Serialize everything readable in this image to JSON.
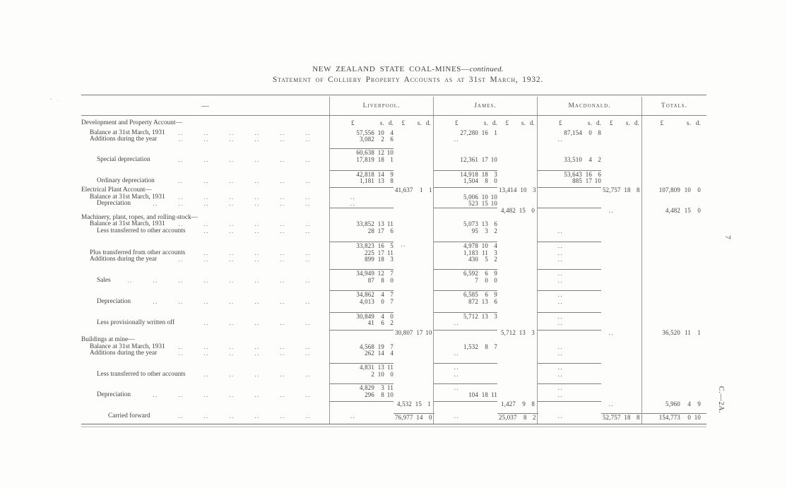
{
  "page": {
    "title_main": "NEW ZEALAND STATE COAL-MINES—",
    "title_suffix": "continued.",
    "subtitle": "Statement of Colliery Property Accounts as at 31st March, 1932.",
    "side_page_number": "7",
    "side_doc_ref": "C.—2A.",
    "margin_mark": "~ ."
  },
  "table": {
    "corner_label": "—",
    "columns": [
      "Liverpool.",
      "James.",
      "Macdonald.",
      "Totals."
    ],
    "currency_header": "£ s. d.",
    "rows": [
      {
        "label": "Development and Property Account—",
        "indent": 0,
        "cur": true,
        "gap": 6
      },
      {
        "label": "Balance at 31st March, 1931",
        "indent": 1,
        "dots": true,
        "liv1": "57,556 10 4",
        "jam1": "27,280 16 1",
        "mac1": "87,154 0 8"
      },
      {
        "label": "Additions during the year",
        "indent": 1,
        "dots": true,
        "liv1": "3,082 2 6",
        "jam1": "..",
        "mac1": ".."
      },
      {
        "gap": 7,
        "rules": [
          "liv1"
        ],
        "liv1": "60,638 12 10"
      },
      {
        "label": "Special depreciation",
        "indent": 2,
        "dots": true,
        "liv1": "17,819 18 1",
        "jam1": "12,361 17 10",
        "mac1": "33,510 4 2"
      },
      {
        "gap": 9,
        "rules": [
          "liv1",
          "jam1",
          "mac1"
        ],
        "liv1": "42,818 14 9",
        "jam1": "14,918 18 3",
        "mac1": "53,643 16 6"
      },
      {
        "label": "Ordinary depreciation",
        "indent": 2,
        "dots": true,
        "liv1": "1,181 13 8",
        "jam1": "1,504 8 0",
        "mac1": "885 17 10"
      },
      {
        "label": "Electrical Plant Account—",
        "indent": 0,
        "gap": 3,
        "rules": [
          "liv1",
          "jam1",
          "mac1"
        ],
        "liv2": "41,637 1 1",
        "jam2": "13,414 10 3",
        "mac2": "52,757 18 8",
        "tot": "107,809 10 0"
      },
      {
        "label": "Balance at 31st March, 1931",
        "indent": 1,
        "dots": true,
        "liv1": "..",
        "jam1": "5,006 10 10"
      },
      {
        "label": "Depreciation",
        "indent": 2,
        "dots": true,
        "liv1": "..",
        "jam1": "523 15 10"
      },
      {
        "rules": [
          "liv1",
          "jam1",
          "mac1"
        ],
        "jam2": "4,482 15 0",
        "mac2": "..",
        "tot": "4,482 15 0"
      },
      {
        "label": "Machinery, plant, ropes, and rolling-stock—",
        "indent": 0
      },
      {
        "label": "Balance at 31st March, 1931",
        "indent": 1,
        "dots": true,
        "liv1": "33,852 13 11",
        "jam1": "5,073 13 6"
      },
      {
        "label": "Less transferred to other accounts",
        "indent": 2,
        "dots": true,
        "liv1": "28 17 6",
        "jam1": "95 3 2",
        "mac1": ".."
      },
      {
        "gap": 9,
        "rules": [
          "liv1",
          "jam1",
          "mac1"
        ],
        "liv1": "33,823 16 5",
        "liv2": "..",
        "jam1": "4,978 10 4",
        "mac1": ".."
      },
      {
        "label": "Plus transferred from other accounts",
        "indent": 1,
        "dots": true,
        "liv1": "225 17 11",
        "jam1": "1,183 11 3",
        "mac1": ".."
      },
      {
        "label": "Additions during the year",
        "indent": 1,
        "dots": true,
        "liv1": "899 18 3",
        "jam1": "430 5 2",
        "mac1": ".."
      },
      {
        "gap": 8,
        "rules": [
          "liv1",
          "jam1",
          "mac1"
        ],
        "liv1": "34,949 12 7",
        "jam1": "6,592 6 9",
        "mac1": ".."
      },
      {
        "label": "Sales",
        "indent": 2,
        "dots": true,
        "liv1": "87 8 0",
        "jam1": "7 0 0",
        "mac1": ".."
      },
      {
        "gap": 9,
        "rules": [
          "liv1",
          "jam1",
          "mac1"
        ],
        "liv1": "34,862 4 7",
        "jam1": "6,585 6 9",
        "mac1": ".."
      },
      {
        "label": "Depreciation",
        "indent": 2,
        "dots": true,
        "liv1": "4,013 0 7",
        "jam1": "872 13 6",
        "mac1": ".."
      },
      {
        "gap": 9,
        "rules": [
          "liv1",
          "jam1",
          "mac1"
        ],
        "liv1": "30,849 4 0",
        "jam1": "5,712 13 3",
        "mac1": ".."
      },
      {
        "label": "Less provisionally written off",
        "indent": 2,
        "dots": true,
        "liv1": "41 6 2",
        "jam1": "..",
        "mac1": ".."
      },
      {
        "gap": 4,
        "rules": [
          "liv1",
          "jam1",
          "mac1"
        ],
        "liv2": "30,807 17 10",
        "jam2": "5,712 13 3",
        "mac2": "..",
        "tot": "36,520 11 1"
      },
      {
        "label": "Buildings at mine—",
        "indent": 0
      },
      {
        "label": "Balance at 31st March, 1931",
        "indent": 1,
        "dots": true,
        "liv1": "4,568 19 7",
        "jam1": "1,532 8 7",
        "mac1": ".."
      },
      {
        "label": "Additions during the year",
        "indent": 1,
        "dots": true,
        "liv1": "262 14 4",
        "jam1": "..",
        "mac1": ".."
      },
      {
        "gap": 8,
        "rules": [
          "liv1",
          "jam1",
          "mac1"
        ],
        "liv1": "4,831 13 11",
        "jam1": "..",
        "mac1": ".."
      },
      {
        "label": "Less transferred to other accounts",
        "indent": 2,
        "dots": true,
        "liv1": "2 10 0",
        "jam1": "..",
        "mac1": ".."
      },
      {
        "gap": 8,
        "rules": [
          "liv1",
          "jam1",
          "mac1"
        ],
        "liv1": "4,829 3 11",
        "jam1": "..",
        "mac1": ".."
      },
      {
        "label": "Depreciation",
        "indent": 2,
        "dots": true,
        "liv1": "296 8 10",
        "jam1": "104 18 11",
        "mac1": ".."
      },
      {
        "gap": 3,
        "rules": [
          "liv1",
          "jam1",
          "mac1"
        ],
        "liv2": "4,532 15 1",
        "jam2": "1,427 9 8",
        "mac2": "..",
        "tot": "5,960 4 9"
      },
      {
        "label": "Carried forward",
        "indent": 3,
        "dots": true,
        "gap": 7,
        "rules": [
          "liv2",
          "jam2",
          "mac2",
          "tot"
        ],
        "liv1": "..",
        "liv2": "76,977 14 0",
        "jam1": "..",
        "jam2": "25,037 8 2",
        "mac1": "..",
        "mac2": "52,757 18 8",
        "tot": "154,773 0 10"
      }
    ]
  }
}
